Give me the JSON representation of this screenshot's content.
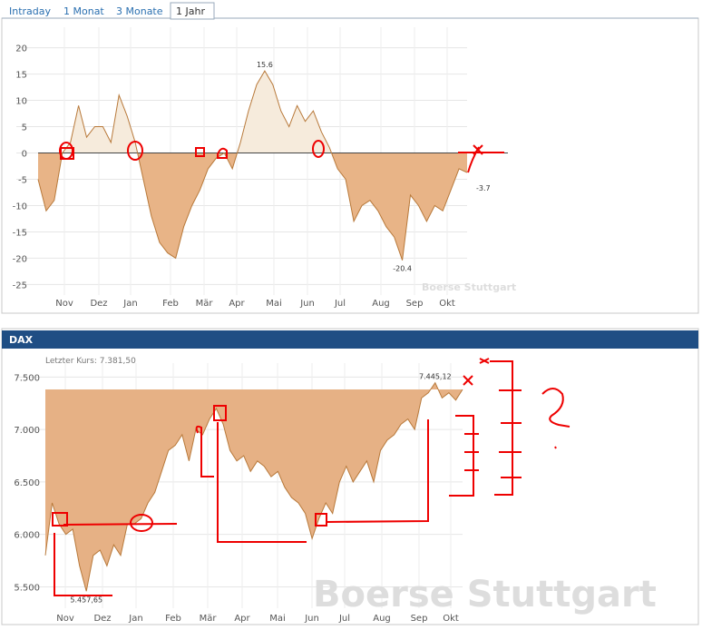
{
  "tabs": [
    "Intraday",
    "1 Monat",
    "3 Monate",
    "1 Jahr"
  ],
  "chart_data": [
    {
      "type": "area",
      "values": [
        -5,
        -11,
        -9,
        0,
        2,
        9,
        3,
        5,
        5,
        2,
        11,
        7,
        2,
        -5,
        -12,
        -17,
        -19,
        -20,
        -14,
        -10,
        -7,
        -3,
        -1,
        0,
        -3,
        2,
        8,
        13,
        15.6,
        13,
        8,
        5,
        9,
        6,
        8,
        4,
        1,
        -3,
        -5,
        -13,
        -10,
        -9,
        -11,
        -14,
        -16,
        -20.4,
        -8,
        -10,
        -13,
        -10,
        -11,
        -7,
        -3,
        -3.7
      ],
      "color": "#b8793a",
      "positive_color": "#f6ebdc",
      "negative_color": "#e8b487",
      "ylim": [
        -27,
        22
      ],
      "yticks": [
        -25,
        -20,
        -15,
        -10,
        -5,
        0,
        5,
        10,
        15,
        20
      ],
      "xlabels": [
        "Nov",
        "Dez",
        "Jan",
        "Feb",
        "Mär",
        "Apr",
        "Mai",
        "Jun",
        "Jul",
        "Aug",
        "Sep",
        "Okt"
      ],
      "grid": true,
      "watermark": "Boerse Stuttgart"
    },
    {
      "type": "area",
      "title": "DAX",
      "subtitle": "Letzter Kurs: 7.381,50",
      "values": [
        5800,
        6300,
        6100,
        6000,
        6050,
        5700,
        5457.65,
        5800,
        5850,
        5700,
        5900,
        5800,
        6100,
        6100,
        6150,
        6300,
        6400,
        6600,
        6800,
        6850,
        6950,
        6700,
        7000,
        6950,
        7100,
        7200,
        7050,
        6800,
        6700,
        6750,
        6600,
        6700,
        6650,
        6550,
        6600,
        6450,
        6350,
        6300,
        6200,
        5960,
        6150,
        6300,
        6200,
        6500,
        6650,
        6500,
        6600,
        6700,
        6500,
        6800,
        6900,
        6950,
        7050,
        7100,
        7000,
        7300,
        7350,
        7445.12,
        7300,
        7350,
        7280,
        7381.5
      ],
      "value_labels": [
        null,
        null,
        null,
        null,
        null,
        null,
        "5.457,65",
        null,
        null,
        null,
        null,
        null,
        null,
        null,
        null,
        null,
        null,
        null,
        null,
        null,
        null,
        null,
        null,
        null,
        null,
        null,
        null,
        null,
        null,
        null,
        null,
        null,
        null,
        null,
        null,
        null,
        null,
        null,
        null,
        null,
        null,
        null,
        null,
        null,
        null,
        null,
        null,
        null,
        null,
        null,
        null,
        null,
        null,
        null,
        null,
        null,
        null,
        "7.445,12",
        null,
        null,
        null,
        null
      ],
      "color": "#b8793a",
      "fill_color": "#e6b185",
      "ylim": [
        5400,
        7650
      ],
      "yticks": [
        {
          "value": 5500,
          "label": "5.500"
        },
        {
          "value": 6000,
          "label": "6.000"
        },
        {
          "value": 6500,
          "label": "6.500"
        },
        {
          "value": 7000,
          "label": "7.000"
        },
        {
          "value": 7500,
          "label": "7.500"
        }
      ],
      "xlabels": [
        "Nov",
        "Dez",
        "Jan",
        "Feb",
        "Mär",
        "Apr",
        "Mai",
        "Jun",
        "Jul",
        "Aug",
        "Sep",
        "Okt"
      ],
      "grid": true,
      "watermark": "Boerse Stuttgart"
    }
  ]
}
